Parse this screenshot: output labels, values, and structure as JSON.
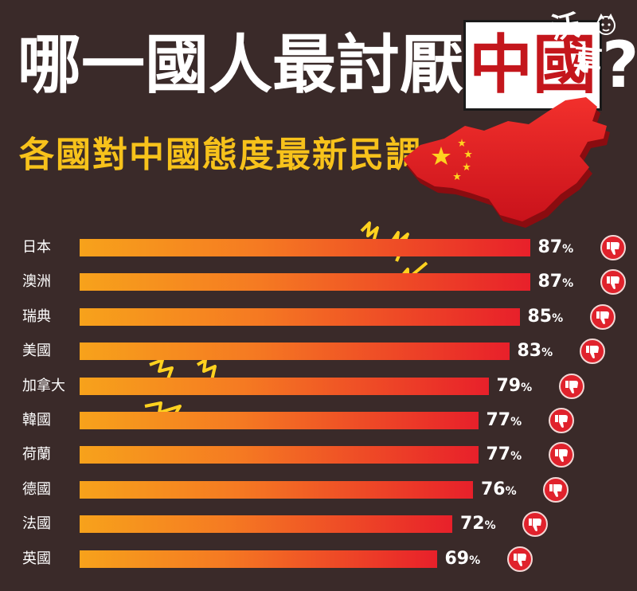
{
  "header": {
    "title_pre": "哪一國人最討厭",
    "title_highlight": "中國",
    "title_post": "?",
    "subtitle": "各國對中國態度最新民調",
    "author_char1": "沃",
    "author_char2": "草"
  },
  "colors": {
    "background": "#3a2a29",
    "bar_start": "#f7a21b",
    "bar_end": "#e8202a",
    "subtitle": "#f7c21b",
    "thumb": "#e0222c"
  },
  "icons": [
    "china-map-icon",
    "thumbs-down-icon",
    "lightning-bolt-icon",
    "cartoon-face-icon"
  ],
  "chart_data": {
    "type": "bar",
    "orientation": "horizontal",
    "categories": [
      "日本",
      "澳洲",
      "瑞典",
      "美國",
      "加拿大",
      "韓國",
      "荷蘭",
      "德國",
      "法國",
      "英國"
    ],
    "values": [
      87,
      87,
      85,
      83,
      79,
      77,
      77,
      76,
      72,
      69
    ],
    "value_labels": [
      "87",
      "87",
      "85",
      "83",
      "79",
      "77",
      "77",
      "76",
      "72",
      "69"
    ],
    "value_suffix": "%",
    "grid": false,
    "legend": "none"
  }
}
